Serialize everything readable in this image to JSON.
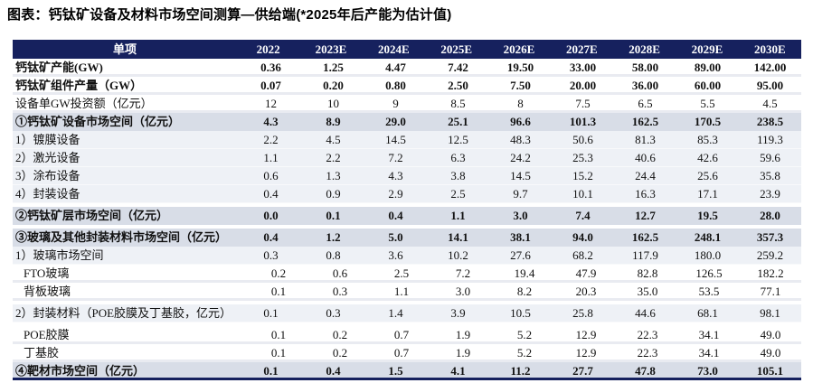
{
  "title": "图表：钙钛矿设备及材料市场空间测算—供给端(*2025年后产能为估计值)",
  "colors": {
    "header_bg": "#16215e",
    "header_text": "#ffffff",
    "section_row_bg": "#d8dde7",
    "sub_row_bg": "#eef1f6",
    "row_separator": "#e9ebf1",
    "bottom_border": "#16215e",
    "body_text": "#111111"
  },
  "chart_data": {
    "type": "table",
    "title": "钙钛矿设备及材料市场空间测算—供给端(*2025年后产能为估计值)",
    "columns": [
      "单项",
      "2022",
      "2023E",
      "2024E",
      "2025E",
      "2026E",
      "2027E",
      "2028E",
      "2029E",
      "2030E"
    ],
    "rows": [
      {
        "label": "钙钛矿产能(GW)",
        "style": "bold-white",
        "gap_before": false,
        "indent": false,
        "values": [
          "0.36",
          "1.25",
          "4.47",
          "7.42",
          "19.50",
          "33.00",
          "58.00",
          "89.00",
          "142.00"
        ]
      },
      {
        "label": "钙钛矿组件产量（GW）",
        "style": "bold-white",
        "gap_before": false,
        "indent": false,
        "values": [
          "0.07",
          "0.20",
          "0.80",
          "2.50",
          "7.50",
          "20.00",
          "36.00",
          "60.00",
          "95.00"
        ]
      },
      {
        "label": "设备单GW投资额（亿元）",
        "style": "plain-white",
        "gap_before": false,
        "indent": false,
        "values": [
          "12",
          "10",
          "9",
          "8.5",
          "8",
          "7.5",
          "6.5",
          "5.5",
          "4.5"
        ]
      },
      {
        "label": "①钙钛矿设备市场空间（亿元）",
        "style": "section",
        "gap_before": false,
        "indent": false,
        "values": [
          "4.3",
          "8.9",
          "29.0",
          "25.1",
          "96.6",
          "101.3",
          "162.5",
          "170.5",
          "238.5"
        ]
      },
      {
        "label": "1）镀膜设备",
        "style": "sub",
        "gap_before": false,
        "indent": false,
        "values": [
          "2.2",
          "4.5",
          "14.5",
          "12.5",
          "48.3",
          "50.6",
          "81.3",
          "85.3",
          "119.3"
        ]
      },
      {
        "label": "2）激光设备",
        "style": "sub",
        "gap_before": false,
        "indent": false,
        "values": [
          "1.1",
          "2.2",
          "7.2",
          "6.3",
          "24.2",
          "25.3",
          "40.6",
          "42.6",
          "59.6"
        ]
      },
      {
        "label": "3）涂布设备",
        "style": "sub",
        "gap_before": false,
        "indent": false,
        "values": [
          "0.6",
          "1.3",
          "4.3",
          "3.8",
          "14.5",
          "15.2",
          "24.4",
          "25.6",
          "35.8"
        ]
      },
      {
        "label": "4）封装设备",
        "style": "sub",
        "gap_before": false,
        "indent": false,
        "values": [
          "0.4",
          "0.9",
          "2.9",
          "2.5",
          "9.7",
          "10.1",
          "16.3",
          "17.1",
          "23.9"
        ]
      },
      {
        "label": "②钙钛矿层市场空间（亿元）",
        "style": "section",
        "gap_before": true,
        "indent": false,
        "values": [
          "0.0",
          "0.1",
          "0.4",
          "1.1",
          "3.0",
          "7.4",
          "12.7",
          "19.5",
          "28.0"
        ]
      },
      {
        "label": "③玻璃及其他封装材料市场空间（亿元）",
        "style": "section",
        "gap_before": true,
        "indent": false,
        "values": [
          "0.4",
          "1.2",
          "5.0",
          "14.1",
          "38.1",
          "94.0",
          "162.5",
          "248.1",
          "357.3"
        ]
      },
      {
        "label": "1）玻璃市场空间",
        "style": "sub",
        "gap_before": false,
        "indent": false,
        "values": [
          "0.3",
          "0.8",
          "3.6",
          "10.2",
          "27.6",
          "68.2",
          "117.9",
          "180.0",
          "259.2"
        ]
      },
      {
        "label": "FTO玻璃",
        "style": "plain-white",
        "gap_before": false,
        "indent": true,
        "values": [
          "0.2",
          "0.6",
          "2.5",
          "7.2",
          "19.4",
          "47.9",
          "82.8",
          "126.5",
          "182.2"
        ]
      },
      {
        "label": "背板玻璃",
        "style": "plain-white",
        "gap_before": false,
        "indent": true,
        "values": [
          "0.1",
          "0.3",
          "1.1",
          "3.0",
          "8.2",
          "20.3",
          "35.0",
          "53.5",
          "77.1"
        ]
      },
      {
        "label": "2）封装材料（POE胶膜及丁基胶，亿元）",
        "style": "sub",
        "gap_before": true,
        "indent": false,
        "values": [
          "0.1",
          "0.3",
          "1.4",
          "3.9",
          "10.5",
          "25.8",
          "44.6",
          "68.1",
          "98.1"
        ]
      },
      {
        "label": "POE胶膜",
        "style": "plain-white",
        "gap_before": true,
        "indent": true,
        "values": [
          "0.1",
          "0.2",
          "0.7",
          "1.9",
          "5.2",
          "12.9",
          "22.3",
          "34.1",
          "49.0"
        ]
      },
      {
        "label": "丁基胶",
        "style": "plain-white",
        "gap_before": false,
        "indent": true,
        "values": [
          "0.1",
          "0.2",
          "0.7",
          "1.9",
          "5.2",
          "12.9",
          "22.3",
          "34.1",
          "49.0"
        ]
      },
      {
        "label": "④靶材市场空间（亿元）",
        "style": "section last",
        "gap_before": false,
        "indent": false,
        "values": [
          "0.1",
          "0.4",
          "1.5",
          "4.1",
          "11.2",
          "27.7",
          "47.8",
          "73.0",
          "105.1"
        ]
      }
    ]
  }
}
